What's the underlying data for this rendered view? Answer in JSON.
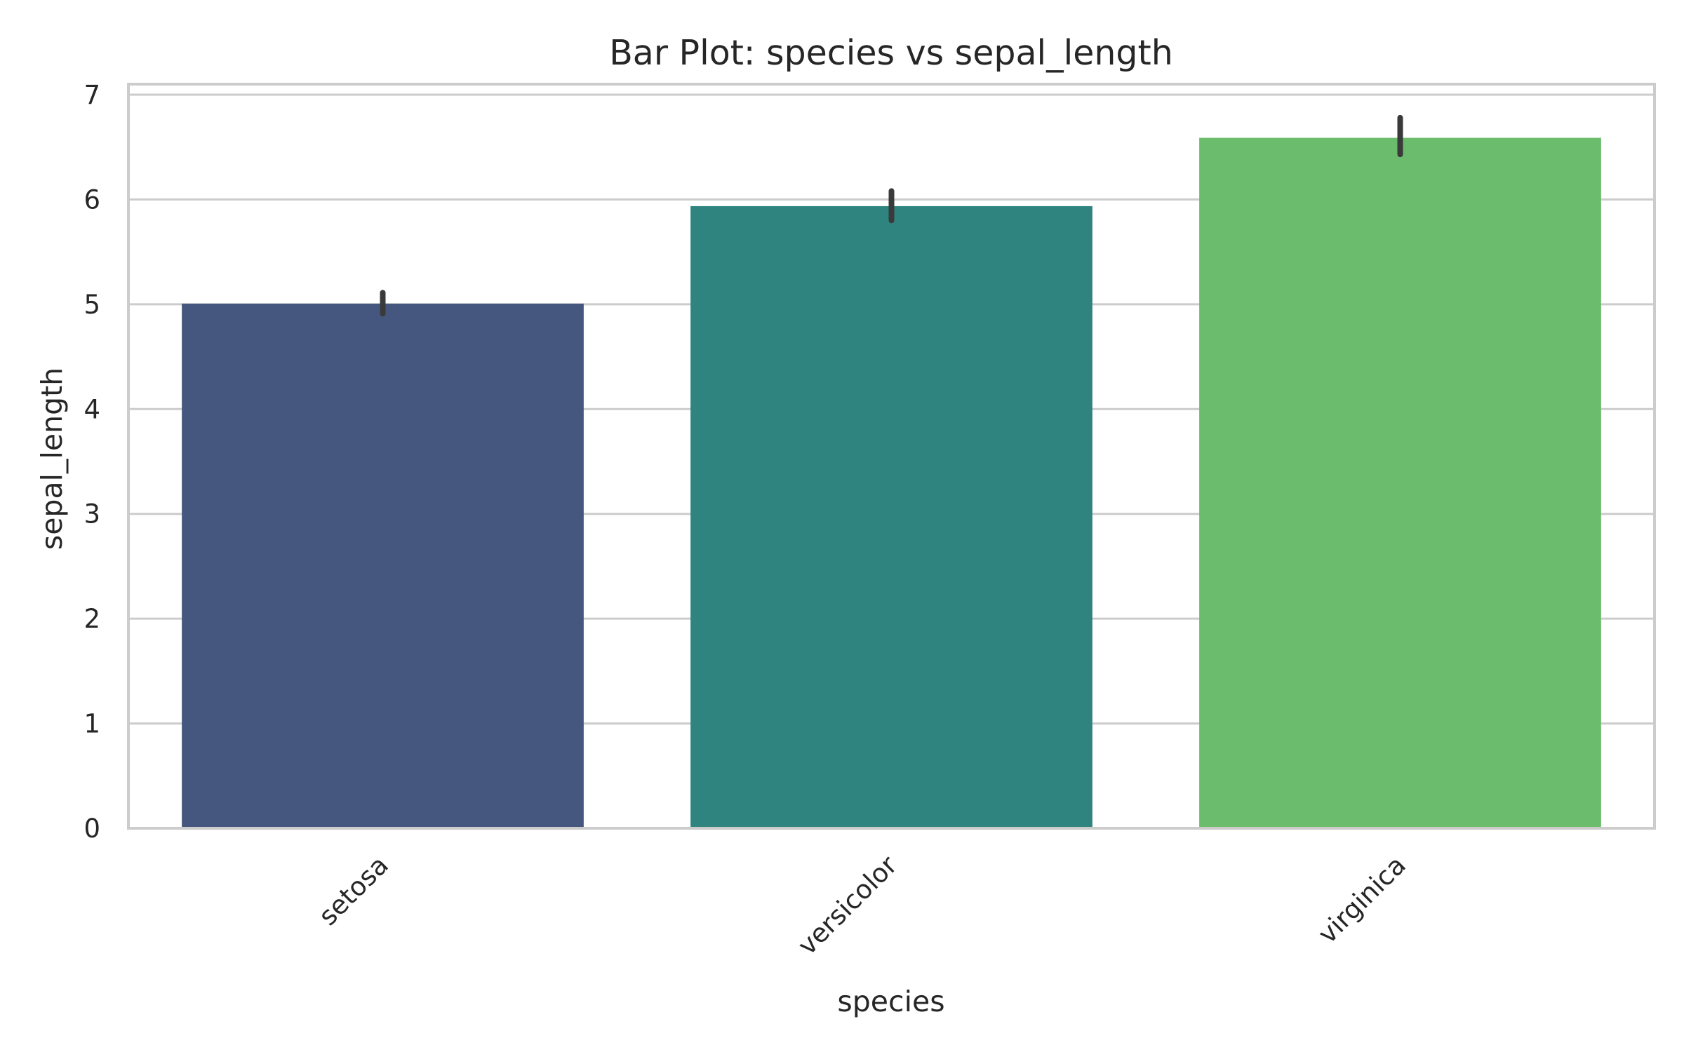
{
  "chart_data": {
    "type": "bar",
    "title": "Bar Plot: species vs sepal_length",
    "xlabel": "species",
    "ylabel": "sepal_length",
    "categories": [
      "setosa",
      "versicolor",
      "virginica"
    ],
    "values": [
      5.006,
      5.936,
      6.588
    ],
    "error_bars": [
      {
        "low": 4.91,
        "high": 5.11
      },
      {
        "low": 5.8,
        "high": 6.08
      },
      {
        "low": 6.43,
        "high": 6.78
      }
    ],
    "ylim": [
      0,
      7.1
    ],
    "y_ticks": [
      "0",
      "1",
      "2",
      "3",
      "4",
      "5",
      "6",
      "7"
    ],
    "y_tick_values": [
      0,
      1,
      2,
      3,
      4,
      5,
      6,
      7
    ],
    "grid": true,
    "colors": [
      "#46577f",
      "#2f847f",
      "#6cbc6e"
    ],
    "error_bar_color": "#3a3a3a",
    "grid_color": "#cccccc",
    "frame_color": "#cccccc"
  }
}
